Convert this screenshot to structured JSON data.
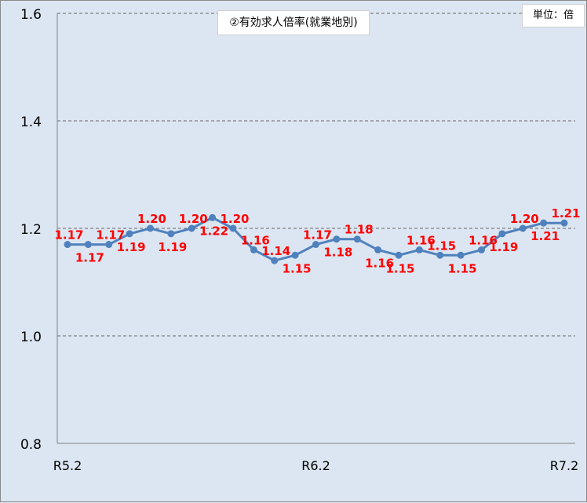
{
  "chart_data": {
    "type": "line",
    "title": "②有効求人倍率(就業地別)",
    "unit": "単位：倍",
    "xlabel": "",
    "ylabel": "",
    "ylim": [
      0.8,
      1.6
    ],
    "yticks": [
      "0.8",
      "1.0",
      "1.2",
      "1.4",
      "1.6"
    ],
    "x_tick_labels": [
      {
        "index": 0,
        "label": "R5.2"
      },
      {
        "index": 12,
        "label": "R6.2"
      },
      {
        "index": 24,
        "label": "R7.2"
      }
    ],
    "grid": "horizontal dashed",
    "colors": {
      "line": "#4f81bd",
      "labels": "#ff0000",
      "background": "#dce6f2"
    },
    "series": [
      {
        "values": [
          1.17,
          1.17,
          1.17,
          1.19,
          1.2,
          1.19,
          1.2,
          1.22,
          1.2,
          1.16,
          1.14,
          1.15,
          1.17,
          1.18,
          1.18,
          1.16,
          1.15,
          1.16,
          1.15,
          1.15,
          1.16,
          1.19,
          1.2,
          1.21,
          1.21
        ],
        "data_labels": [
          "1.17",
          "1.17",
          "1.17",
          "1.19",
          "1.20",
          "1.19",
          "1.20",
          "1.22",
          "1.20",
          "1.16",
          "1.14",
          "1.15",
          "1.17",
          "1.18",
          "1.18",
          "1.16",
          "1.15",
          "1.16",
          "1.15",
          "1.15",
          "1.16",
          "1.19",
          "1.20",
          "1.21",
          "1.21"
        ]
      }
    ]
  }
}
